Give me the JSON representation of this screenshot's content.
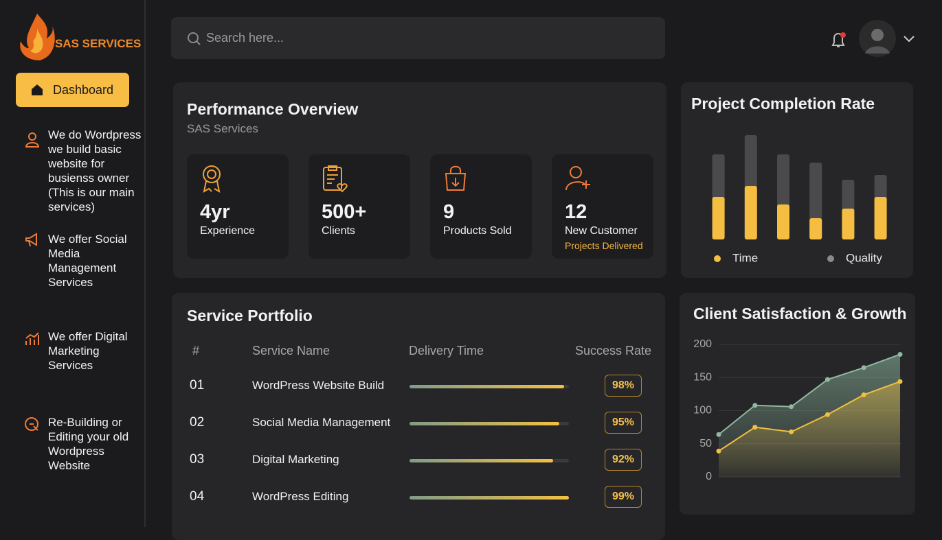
{
  "sidebar": {
    "logo": "SAS SERVICES",
    "active": "Dashboard",
    "items": [
      "We do Wordpress we build basic website for busienss owner (This is our main services)",
      "We offer Social Media Management Services",
      "We offer Digital Marketing Services",
      "Re-Building or Editing your old Wordpress Website"
    ]
  },
  "header": {
    "search": "Search here..."
  },
  "performance": {
    "title": "Performance Overview",
    "subtitle": "SAS Services",
    "stats": [
      {
        "value": "4yr",
        "label": "Experience"
      },
      {
        "value": "500+",
        "label": "Clients"
      },
      {
        "value": "9",
        "label": "Products Sold"
      },
      {
        "value": "12",
        "label": "New Customer",
        "note": "Projects Delivered"
      }
    ]
  },
  "portfolio": {
    "title": "Service Portfolio",
    "columns": [
      "#",
      "Service Name",
      "Delivery Time",
      "Success Rate"
    ],
    "delivery_lim": [
      0,
      100
    ],
    "rows": [
      {
        "num": "01",
        "name": "WordPress Website Build",
        "delivery": 97,
        "rate": "98%"
      },
      {
        "num": "02",
        "name": "Social Media Management",
        "delivery": 94,
        "rate": "95%"
      },
      {
        "num": "03",
        "name": "Digital Marketing",
        "delivery": 90,
        "rate": "92%"
      },
      {
        "num": "04",
        "name": "WordPress Editing",
        "delivery": 100,
        "rate": "99%"
      }
    ]
  },
  "chart_data": [
    {
      "type": "bar",
      "title": "Project Completion Rate",
      "categories": [
        null,
        null,
        null,
        null,
        null,
        null
      ],
      "ylim": [
        0,
        160
      ],
      "series": [
        {
          "name": "Time",
          "color": "#f5bd41",
          "values": [
            62,
            78,
            51,
            31,
            45,
            62
          ]
        },
        {
          "name": "Quality",
          "color": "#4a4a4d",
          "values": [
            124,
            152,
            124,
            112,
            87,
            94
          ]
        }
      ]
    },
    {
      "type": "area",
      "title": "Client Satisfaction & Growth",
      "categories": [
        null,
        null,
        null,
        null,
        null,
        null
      ],
      "ylim": [
        0,
        200
      ],
      "yticks": [
        0,
        50,
        100,
        150,
        200
      ],
      "grid": true,
      "series": [
        {
          "color": "#8fb9a0",
          "values": [
            64,
            108,
            106,
            147,
            165,
            185
          ]
        },
        {
          "color": "#f0c040",
          "values": [
            39,
            75,
            68,
            94,
            124,
            144
          ]
        }
      ]
    }
  ]
}
